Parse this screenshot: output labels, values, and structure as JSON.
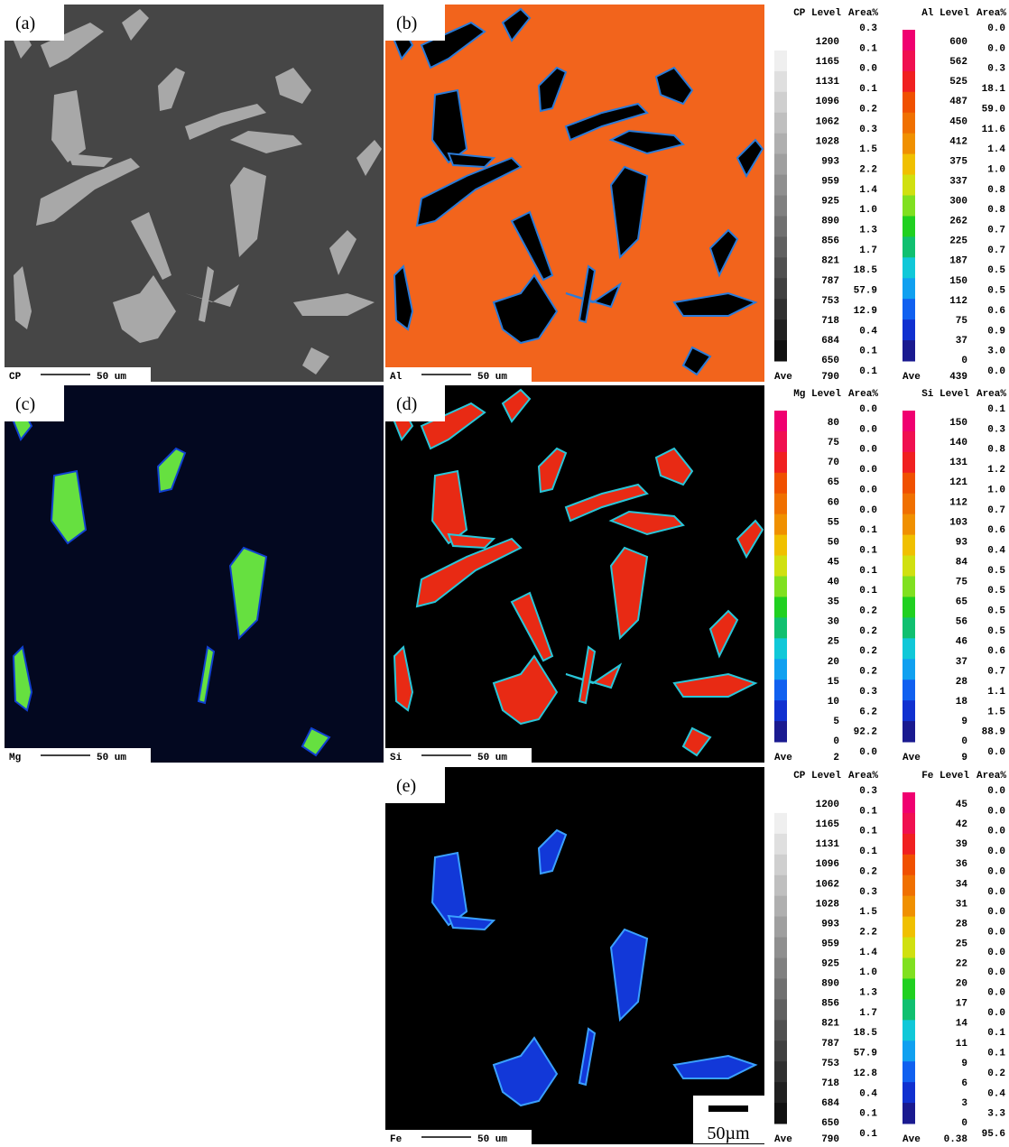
{
  "panels": [
    {
      "label": "(a)",
      "element": "CP",
      "scale": "50 um"
    },
    {
      "label": "(b)",
      "element": "Al",
      "scale": "50 um"
    },
    {
      "label": "(c)",
      "element": "Mg",
      "scale": "50 um"
    },
    {
      "label": "(d)",
      "element": "Si",
      "scale": "50 um"
    },
    {
      "label": "(e)",
      "element": "Fe",
      "scale": "50 um"
    }
  ],
  "colorbars": [
    {
      "title": "CP Level",
      "area_header": "Area%",
      "levels": [
        1200,
        1165,
        1131,
        1096,
        1062,
        1028,
        993,
        959,
        925,
        890,
        856,
        821,
        787,
        753,
        718,
        684,
        650
      ],
      "areas": [
        "0.3",
        "0.1",
        "0.0",
        "0.1",
        "0.2",
        "0.3",
        "1.5",
        "2.2",
        "1.4",
        "1.0",
        "1.3",
        "1.7",
        "18.5",
        "57.9",
        "12.9",
        "0.4",
        "0.1",
        "0.1"
      ],
      "ave_label": "Ave",
      "ave": 790
    },
    {
      "title": "Al Level",
      "area_header": "Area%",
      "levels": [
        600,
        562,
        525,
        487,
        450,
        412,
        375,
        337,
        300,
        262,
        225,
        187,
        150,
        112,
        75,
        37,
        0
      ],
      "areas": [
        "0.0",
        "0.0",
        "0.3",
        "18.1",
        "59.0",
        "11.6",
        "1.4",
        "1.0",
        "0.8",
        "0.8",
        "0.7",
        "0.7",
        "0.5",
        "0.5",
        "0.6",
        "0.9",
        "3.0",
        "0.0"
      ],
      "ave_label": "Ave",
      "ave": 439
    },
    {
      "title": "Mg Level",
      "area_header": "Area%",
      "levels": [
        80,
        75,
        70,
        65,
        60,
        55,
        50,
        45,
        40,
        35,
        30,
        25,
        20,
        15,
        10,
        5,
        0
      ],
      "areas": [
        "0.0",
        "0.0",
        "0.0",
        "0.0",
        "0.0",
        "0.0",
        "0.1",
        "0.1",
        "0.1",
        "0.1",
        "0.2",
        "0.2",
        "0.2",
        "0.2",
        "0.3",
        "6.2",
        "92.2",
        "0.0"
      ],
      "ave_label": "Ave",
      "ave": 2
    },
    {
      "title": "Si Level",
      "area_header": "Area%",
      "levels": [
        150,
        140,
        131,
        121,
        112,
        103,
        93,
        84,
        75,
        65,
        56,
        46,
        37,
        28,
        18,
        9,
        0
      ],
      "areas": [
        "0.1",
        "0.3",
        "0.8",
        "1.2",
        "1.0",
        "0.7",
        "0.6",
        "0.4",
        "0.5",
        "0.5",
        "0.5",
        "0.5",
        "0.6",
        "0.7",
        "1.1",
        "1.5",
        "88.9",
        "0.0"
      ],
      "ave_label": "Ave",
      "ave": 9
    },
    {
      "title": "CP Level",
      "area_header": "Area%",
      "levels": [
        1200,
        1165,
        1131,
        1096,
        1062,
        1028,
        993,
        959,
        925,
        890,
        856,
        821,
        787,
        753,
        718,
        684,
        650
      ],
      "areas": [
        "0.3",
        "0.1",
        "0.1",
        "0.1",
        "0.2",
        "0.3",
        "1.5",
        "2.2",
        "1.4",
        "1.0",
        "1.3",
        "1.7",
        "18.5",
        "57.9",
        "12.8",
        "0.4",
        "0.1",
        "0.1"
      ],
      "ave_label": "Ave",
      "ave": 790
    },
    {
      "title": "Fe Level",
      "area_header": "Area%",
      "levels": [
        45,
        42,
        39,
        36,
        34,
        31,
        28,
        25,
        22,
        20,
        17,
        14,
        11,
        9,
        6,
        3,
        0
      ],
      "areas": [
        "0.0",
        "0.0",
        "0.0",
        "0.0",
        "0.0",
        "0.0",
        "0.0",
        "0.0",
        "0.0",
        "0.0",
        "0.0",
        "0.0",
        "0.1",
        "0.1",
        "0.2",
        "0.4",
        "3.3",
        "95.6"
      ],
      "ave_label": "Ave",
      "ave": 0.38
    }
  ],
  "scale_bar": "50µm"
}
